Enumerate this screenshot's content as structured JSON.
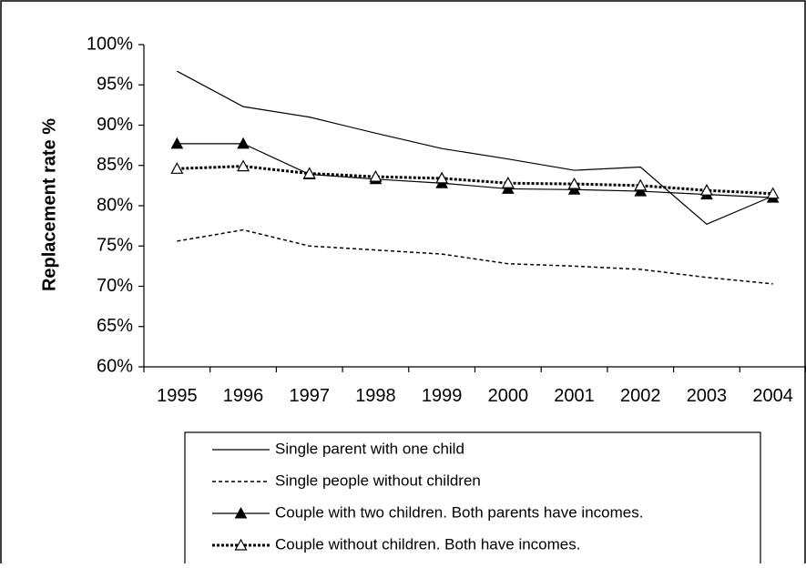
{
  "chart_data": {
    "type": "line",
    "title": "",
    "xlabel": "",
    "ylabel": "Replacement rate %",
    "categories": [
      "1995",
      "1996",
      "1997",
      "1998",
      "1999",
      "2000",
      "2001",
      "2002",
      "2003",
      "2004"
    ],
    "yticks": [
      "60%",
      "65%",
      "70%",
      "75%",
      "80%",
      "85%",
      "90%",
      "95%",
      "100%"
    ],
    "ylim": [
      60,
      100
    ],
    "grid": false,
    "legend_position": "bottom",
    "series": [
      {
        "name": "Single parent with one child",
        "values": [
          96.7,
          92.3,
          91.0,
          89.0,
          87.1,
          85.8,
          84.4,
          84.8,
          77.7,
          81.2
        ],
        "line": "solid",
        "marker": "none",
        "color": "#000000"
      },
      {
        "name": "Single people without children",
        "values": [
          75.6,
          77.0,
          75.0,
          74.5,
          74.0,
          72.8,
          72.5,
          72.1,
          71.1,
          70.3
        ],
        "line": "dashed",
        "marker": "none",
        "color": "#000000"
      },
      {
        "name": "Couple with two children. Both parents have incomes.",
        "values": [
          87.7,
          87.7,
          83.9,
          83.3,
          82.8,
          82.1,
          82.0,
          81.8,
          81.4,
          81.0
        ],
        "line": "solid",
        "marker": "filled-triangle",
        "color": "#000000"
      },
      {
        "name": "Couple without children. Both have incomes.",
        "values": [
          84.6,
          84.9,
          84.0,
          83.6,
          83.4,
          82.8,
          82.7,
          82.5,
          81.9,
          81.5
        ],
        "line": "bold-dotted",
        "marker": "open-triangle",
        "color": "#000000"
      }
    ]
  }
}
